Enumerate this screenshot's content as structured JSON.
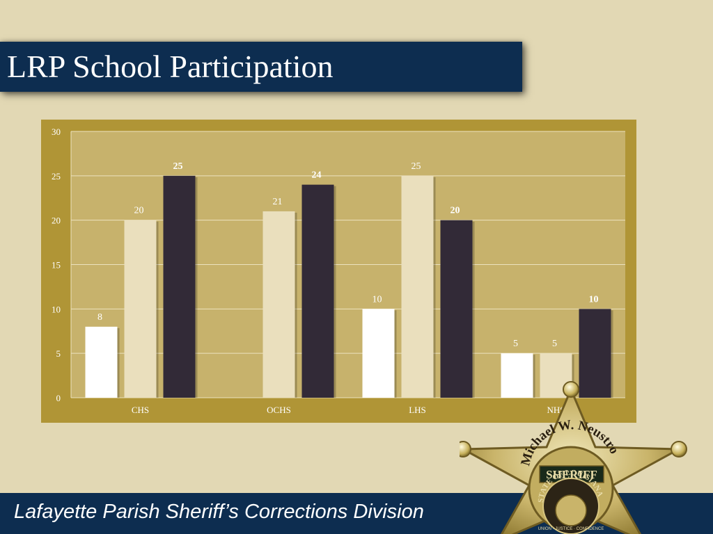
{
  "header": {
    "title": "LRP School Participation"
  },
  "footer": {
    "text": "Lafayette Parish Sheriff’s Corrections Division"
  },
  "badge": {
    "name": "Michael W. Neustrom",
    "rank": "SHERIFF",
    "state": "STATE OF LOUISIANA",
    "motto": "UNION · JUSTICE · CONFIDENCE"
  },
  "chart_data": {
    "type": "bar",
    "categories": [
      "CHS",
      "OCHS",
      "LHS",
      "NHS"
    ],
    "series": [
      {
        "values": [
          8,
          null,
          10,
          5
        ],
        "color": "#ffffff",
        "label_color": "#ffffff",
        "bold": false
      },
      {
        "values": [
          20,
          21,
          25,
          5
        ],
        "color": "#eadfbd",
        "label_color": "#ffffff",
        "bold": false
      },
      {
        "values": [
          25,
          24,
          20,
          10
        ],
        "color": "#322a37",
        "label_color": "#ffffff",
        "bold": true
      }
    ],
    "ylim": [
      0,
      30
    ],
    "yticks": [
      0,
      5,
      10,
      15,
      20,
      25,
      30
    ],
    "grid": true,
    "colors": {
      "plot_bg": "#c7b26c",
      "panel_bg": "#b09536",
      "grid": "#ece2bf"
    }
  }
}
